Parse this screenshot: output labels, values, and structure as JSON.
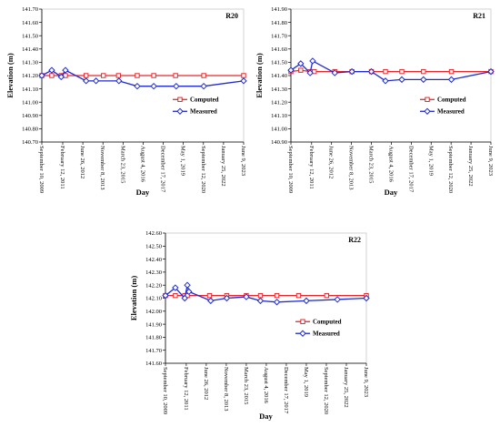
{
  "colors": {
    "computed": "#e8262a",
    "measured": "#1f2bd1",
    "axis": "#000000",
    "plot_border": "#c8c8c8"
  },
  "chart_data": [
    {
      "type": "line",
      "label": "R20",
      "xlabel": "Day",
      "ylabel": "Elevation (m)",
      "ylim": [
        140.7,
        141.7
      ],
      "ystep": 0.1,
      "yticks": [
        "140.70",
        "140.80",
        "140.90",
        "141.00",
        "141.10",
        "141.20",
        "141.30",
        "141.40",
        "141.50",
        "141.60",
        "141.70"
      ],
      "xlim": [
        "2009-09-10",
        "2023-06-09"
      ],
      "xticks": [
        {
          "date": "2009-09-10",
          "label": "September 10, 2009"
        },
        {
          "date": "2011-02-12",
          "label": "February 12, 2011"
        },
        {
          "date": "2012-06-26",
          "label": "June 26, 2012"
        },
        {
          "date": "2013-11-08",
          "label": "November 8, 2013"
        },
        {
          "date": "2015-03-23",
          "label": "March 23, 2015"
        },
        {
          "date": "2016-08-04",
          "label": "August 4, 2016"
        },
        {
          "date": "2017-12-17",
          "label": "December 17, 2017"
        },
        {
          "date": "2019-05-01",
          "label": "May 1, 2019"
        },
        {
          "date": "2020-09-12",
          "label": "September 12, 2020"
        },
        {
          "date": "2022-01-25",
          "label": "January 25, 2022"
        },
        {
          "date": "2023-06-09",
          "label": "June 9, 2023"
        }
      ],
      "legend_position": "right",
      "series": [
        {
          "name": "Computed",
          "marker": "square",
          "x": [
            "2009-09-10",
            "2010-05-15",
            "2011-01-05",
            "2011-04-20",
            "2012-09-15",
            "2013-11-20",
            "2014-11-30",
            "2016-03-10",
            "2017-04-25",
            "2018-10-20",
            "2020-09-20",
            "2023-06-09"
          ],
          "y": [
            141.2,
            141.2,
            141.2,
            141.2,
            141.2,
            141.2,
            141.2,
            141.2,
            141.2,
            141.2,
            141.2,
            141.2
          ]
        },
        {
          "name": "Measured",
          "marker": "diamond",
          "x": [
            "2009-09-10",
            "2010-05-15",
            "2011-01-05",
            "2011-04-20",
            "2012-09-15",
            "2013-05-20",
            "2014-12-10",
            "2016-03-10",
            "2017-04-25",
            "2018-11-05",
            "2020-09-20",
            "2023-06-09"
          ],
          "y": [
            141.2,
            141.24,
            141.19,
            141.24,
            141.16,
            141.16,
            141.16,
            141.12,
            141.12,
            141.12,
            141.12,
            141.16
          ]
        }
      ]
    },
    {
      "type": "line",
      "label": "R21",
      "xlabel": "Day",
      "ylabel": "Elevation (m)",
      "ylim": [
        140.9,
        141.9
      ],
      "ystep": 0.1,
      "yticks": [
        "140.90",
        "141.00",
        "141.10",
        "141.20",
        "141.30",
        "141.40",
        "141.50",
        "141.60",
        "141.70",
        "141.80",
        "141.90"
      ],
      "xlim": [
        "2009-09-10",
        "2023-06-09"
      ],
      "xticks": [
        {
          "date": "2009-09-10",
          "label": "September 10, 2009"
        },
        {
          "date": "2011-02-12",
          "label": "February 12, 2011"
        },
        {
          "date": "2012-06-26",
          "label": "June 26, 2012"
        },
        {
          "date": "2013-11-08",
          "label": "November 8, 2013"
        },
        {
          "date": "2015-03-23",
          "label": "March 23, 2015"
        },
        {
          "date": "2016-08-04",
          "label": "August 4, 2016"
        },
        {
          "date": "2017-12-17",
          "label": "December 17, 2017"
        },
        {
          "date": "2019-05-01",
          "label": "May 1, 2019"
        },
        {
          "date": "2020-09-12",
          "label": "September 12, 2020"
        },
        {
          "date": "2022-01-25",
          "label": "January 25, 2022"
        },
        {
          "date": "2023-06-09",
          "label": "June 9, 2023"
        }
      ],
      "legend_position": "right",
      "series": [
        {
          "name": "Computed",
          "marker": "square",
          "x": [
            "2009-09-10",
            "2010-05-15",
            "2011-01-05",
            "2011-04-20",
            "2012-09-15",
            "2013-11-20",
            "2015-03-23",
            "2016-03-10",
            "2017-04-25",
            "2018-10-20",
            "2020-09-20",
            "2023-06-09"
          ],
          "y": [
            141.43,
            141.44,
            141.43,
            141.43,
            141.43,
            141.43,
            141.43,
            141.43,
            141.43,
            141.43,
            141.43,
            141.43
          ]
        },
        {
          "name": "Measured",
          "marker": "diamond",
          "x": [
            "2009-09-10",
            "2010-05-15",
            "2011-01-05",
            "2011-03-10",
            "2012-09-15",
            "2013-11-20",
            "2015-03-23",
            "2016-03-10",
            "2017-04-25",
            "2018-10-20",
            "2020-09-20",
            "2023-06-09"
          ],
          "y": [
            141.44,
            141.49,
            141.42,
            141.51,
            141.42,
            141.43,
            141.43,
            141.36,
            141.37,
            141.37,
            141.37,
            141.43
          ]
        }
      ]
    },
    {
      "type": "line",
      "label": "R22",
      "xlabel": "Day",
      "ylabel": "Elevation (m)",
      "ylim": [
        141.6,
        142.6
      ],
      "ystep": 0.1,
      "yticks": [
        "141.60",
        "141.70",
        "141.80",
        "141.90",
        "142.00",
        "142.10",
        "142.20",
        "142.30",
        "142.40",
        "142.50",
        "142.60"
      ],
      "xlim": [
        "2009-09-10",
        "2023-06-09"
      ],
      "xticks": [
        {
          "date": "2009-09-10",
          "label": "September 10, 2009"
        },
        {
          "date": "2011-02-12",
          "label": "February 12, 2011"
        },
        {
          "date": "2012-06-26",
          "label": "June 26, 2012"
        },
        {
          "date": "2013-11-08",
          "label": "November 8, 2013"
        },
        {
          "date": "2015-03-23",
          "label": "March 23, 2015"
        },
        {
          "date": "2016-08-04",
          "label": "August 4, 2016"
        },
        {
          "date": "2017-12-17",
          "label": "December 17, 2017"
        },
        {
          "date": "2019-05-01",
          "label": "May 1, 2019"
        },
        {
          "date": "2020-09-12",
          "label": "September 12, 2020"
        },
        {
          "date": "2022-01-25",
          "label": "January 25, 2022"
        },
        {
          "date": "2023-06-09",
          "label": "June 9, 2023"
        }
      ],
      "legend_position": "right",
      "series": [
        {
          "name": "Computed",
          "marker": "square",
          "x": [
            "2009-09-10",
            "2010-05-15",
            "2011-01-05",
            "2011-03-10",
            "2012-09-15",
            "2013-11-20",
            "2015-03-23",
            "2016-03-10",
            "2017-04-25",
            "2018-10-20",
            "2020-09-20",
            "2023-06-09"
          ],
          "y": [
            142.12,
            142.12,
            142.12,
            142.12,
            142.12,
            142.12,
            142.12,
            142.12,
            142.12,
            142.12,
            142.12,
            142.12
          ]
        },
        {
          "name": "Measured",
          "marker": "diamond",
          "x": [
            "2009-09-10",
            "2010-05-15",
            "2011-01-05",
            "2011-03-10",
            "2011-04-20",
            "2012-10-15",
            "2013-11-20",
            "2015-03-23",
            "2016-03-10",
            "2017-04-25",
            "2019-05-01",
            "2021-06-15",
            "2023-06-09"
          ],
          "y": [
            142.12,
            142.18,
            142.1,
            142.2,
            142.15,
            142.08,
            142.1,
            142.11,
            142.08,
            142.07,
            142.08,
            142.09,
            142.1
          ]
        }
      ]
    }
  ]
}
